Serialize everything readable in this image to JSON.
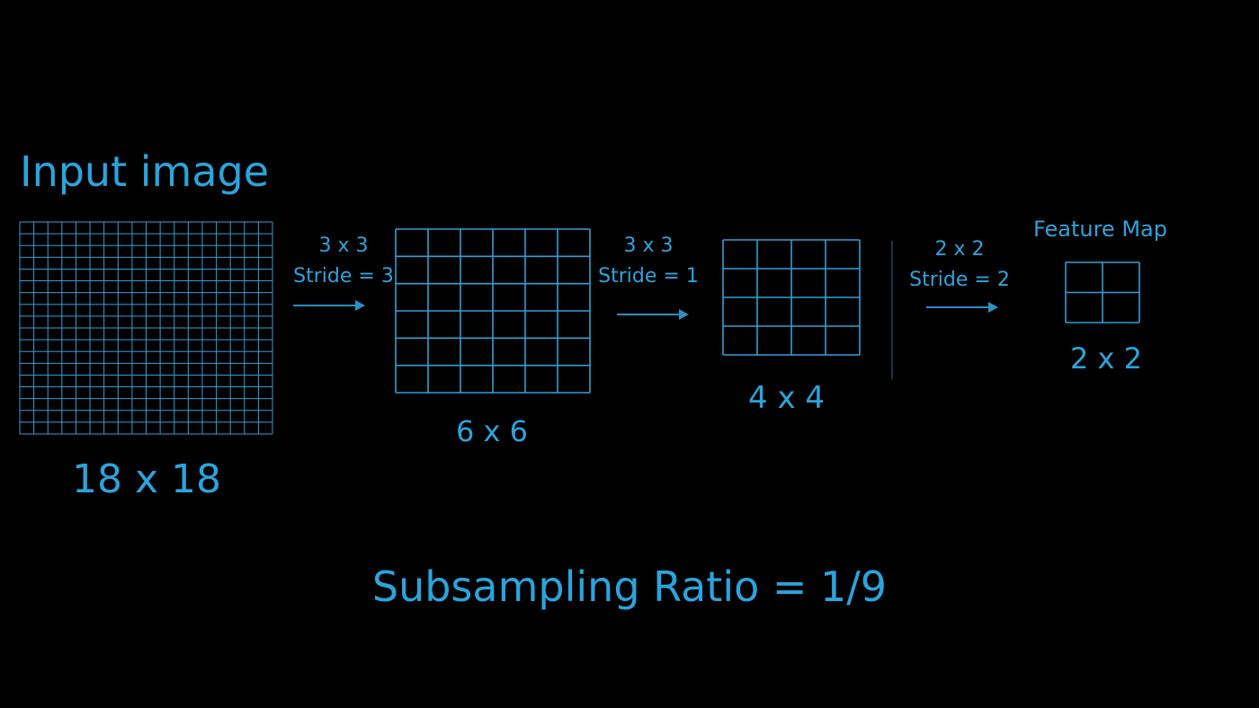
{
  "title": "Input image",
  "grids": [
    {
      "id": "input",
      "rows": 18,
      "cols": 18,
      "caption": "18 x 18"
    },
    {
      "id": "conv1",
      "rows": 6,
      "cols": 6,
      "caption": "6 x 6"
    },
    {
      "id": "conv2",
      "rows": 4,
      "cols": 4,
      "caption": "4 x 4"
    },
    {
      "id": "feature",
      "rows": 2,
      "cols": 2,
      "caption": "2 x 2",
      "label": "Feature Map"
    }
  ],
  "operations": [
    {
      "kernel": "3 x 3",
      "stride": "Stride = 3"
    },
    {
      "kernel": "3 x 3",
      "stride": "Stride = 1"
    },
    {
      "kernel": "2 x 2",
      "stride": "Stride = 2"
    }
  ],
  "footer": "Subsampling Ratio = 1/9",
  "colors": {
    "text": "#2aa4dd",
    "grid": "#2f9fd6",
    "arrow": "#2b8fc0",
    "background": "#000000"
  }
}
